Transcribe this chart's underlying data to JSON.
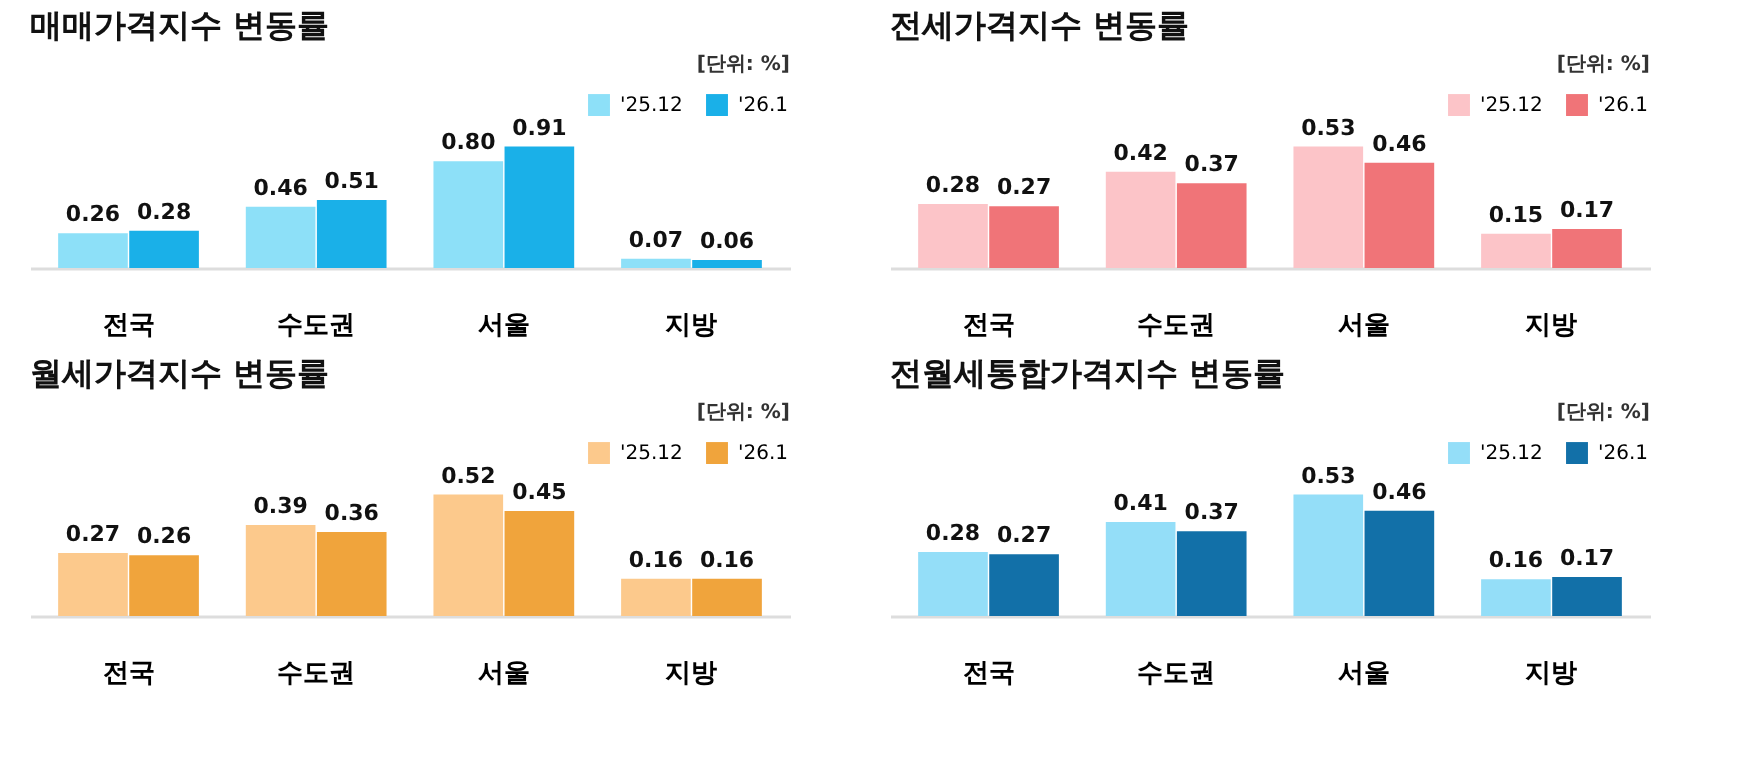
{
  "chart_data": [
    {
      "type": "bar",
      "title": "매매가격지수 변동률",
      "annotations": [
        "[단위: %]"
      ],
      "categories": [
        "전국",
        "수도권",
        "서울",
        "지방"
      ],
      "legend": "top right",
      "data_labels": true,
      "series": [
        {
          "name": "'25.12",
          "color": "#8de0f8",
          "values": [
            0.26,
            0.46,
            0.8,
            0.07
          ],
          "value_labels": [
            "0.26",
            "0.46",
            "0.80",
            "0.07"
          ]
        },
        {
          "name": "'26.1",
          "color": "#1ab0e8",
          "values": [
            0.28,
            0.51,
            0.91,
            0.06
          ]
        }
      ]
    },
    {
      "type": "bar",
      "title": "전세가격지수 변동률",
      "annotations": [
        "[단위: %]"
      ],
      "categories": [
        "전국",
        "수도권",
        "서울",
        "지방"
      ],
      "legend": "top right",
      "data_labels": true,
      "series": [
        {
          "name": "'25.12",
          "color": "#fcc4c8",
          "values": [
            0.28,
            0.42,
            0.53,
            0.15
          ]
        },
        {
          "name": "'26.1",
          "color": "#f07478",
          "values": [
            0.27,
            0.37,
            0.46,
            0.17
          ]
        }
      ]
    },
    {
      "type": "bar",
      "title": "월세가격지수 변동률",
      "annotations": [
        "[단위: %]"
      ],
      "categories": [
        "전국",
        "수도권",
        "서울",
        "지방"
      ],
      "legend": "top right",
      "data_labels": true,
      "series": [
        {
          "name": "'25.12",
          "color": "#fcc98c",
          "values": [
            0.27,
            0.39,
            0.52,
            0.16
          ]
        },
        {
          "name": "'26.1",
          "color": "#f0a43c",
          "values": [
            0.26,
            0.36,
            0.45,
            0.16
          ]
        }
      ]
    },
    {
      "type": "bar",
      "title": "전월세통합가격지수 변동률",
      "annotations": [
        "[단위: %]"
      ],
      "categories": [
        "전국",
        "수도권",
        "서울",
        "지방"
      ],
      "legend": "top right",
      "data_labels": true,
      "series": [
        {
          "name": "'25.12",
          "color": "#94def8",
          "values": [
            0.28,
            0.41,
            0.53,
            0.16
          ]
        },
        {
          "name": "'26.1",
          "color": "#1270a8",
          "values": [
            0.27,
            0.37,
            0.46,
            0.17
          ]
        }
      ]
    }
  ]
}
